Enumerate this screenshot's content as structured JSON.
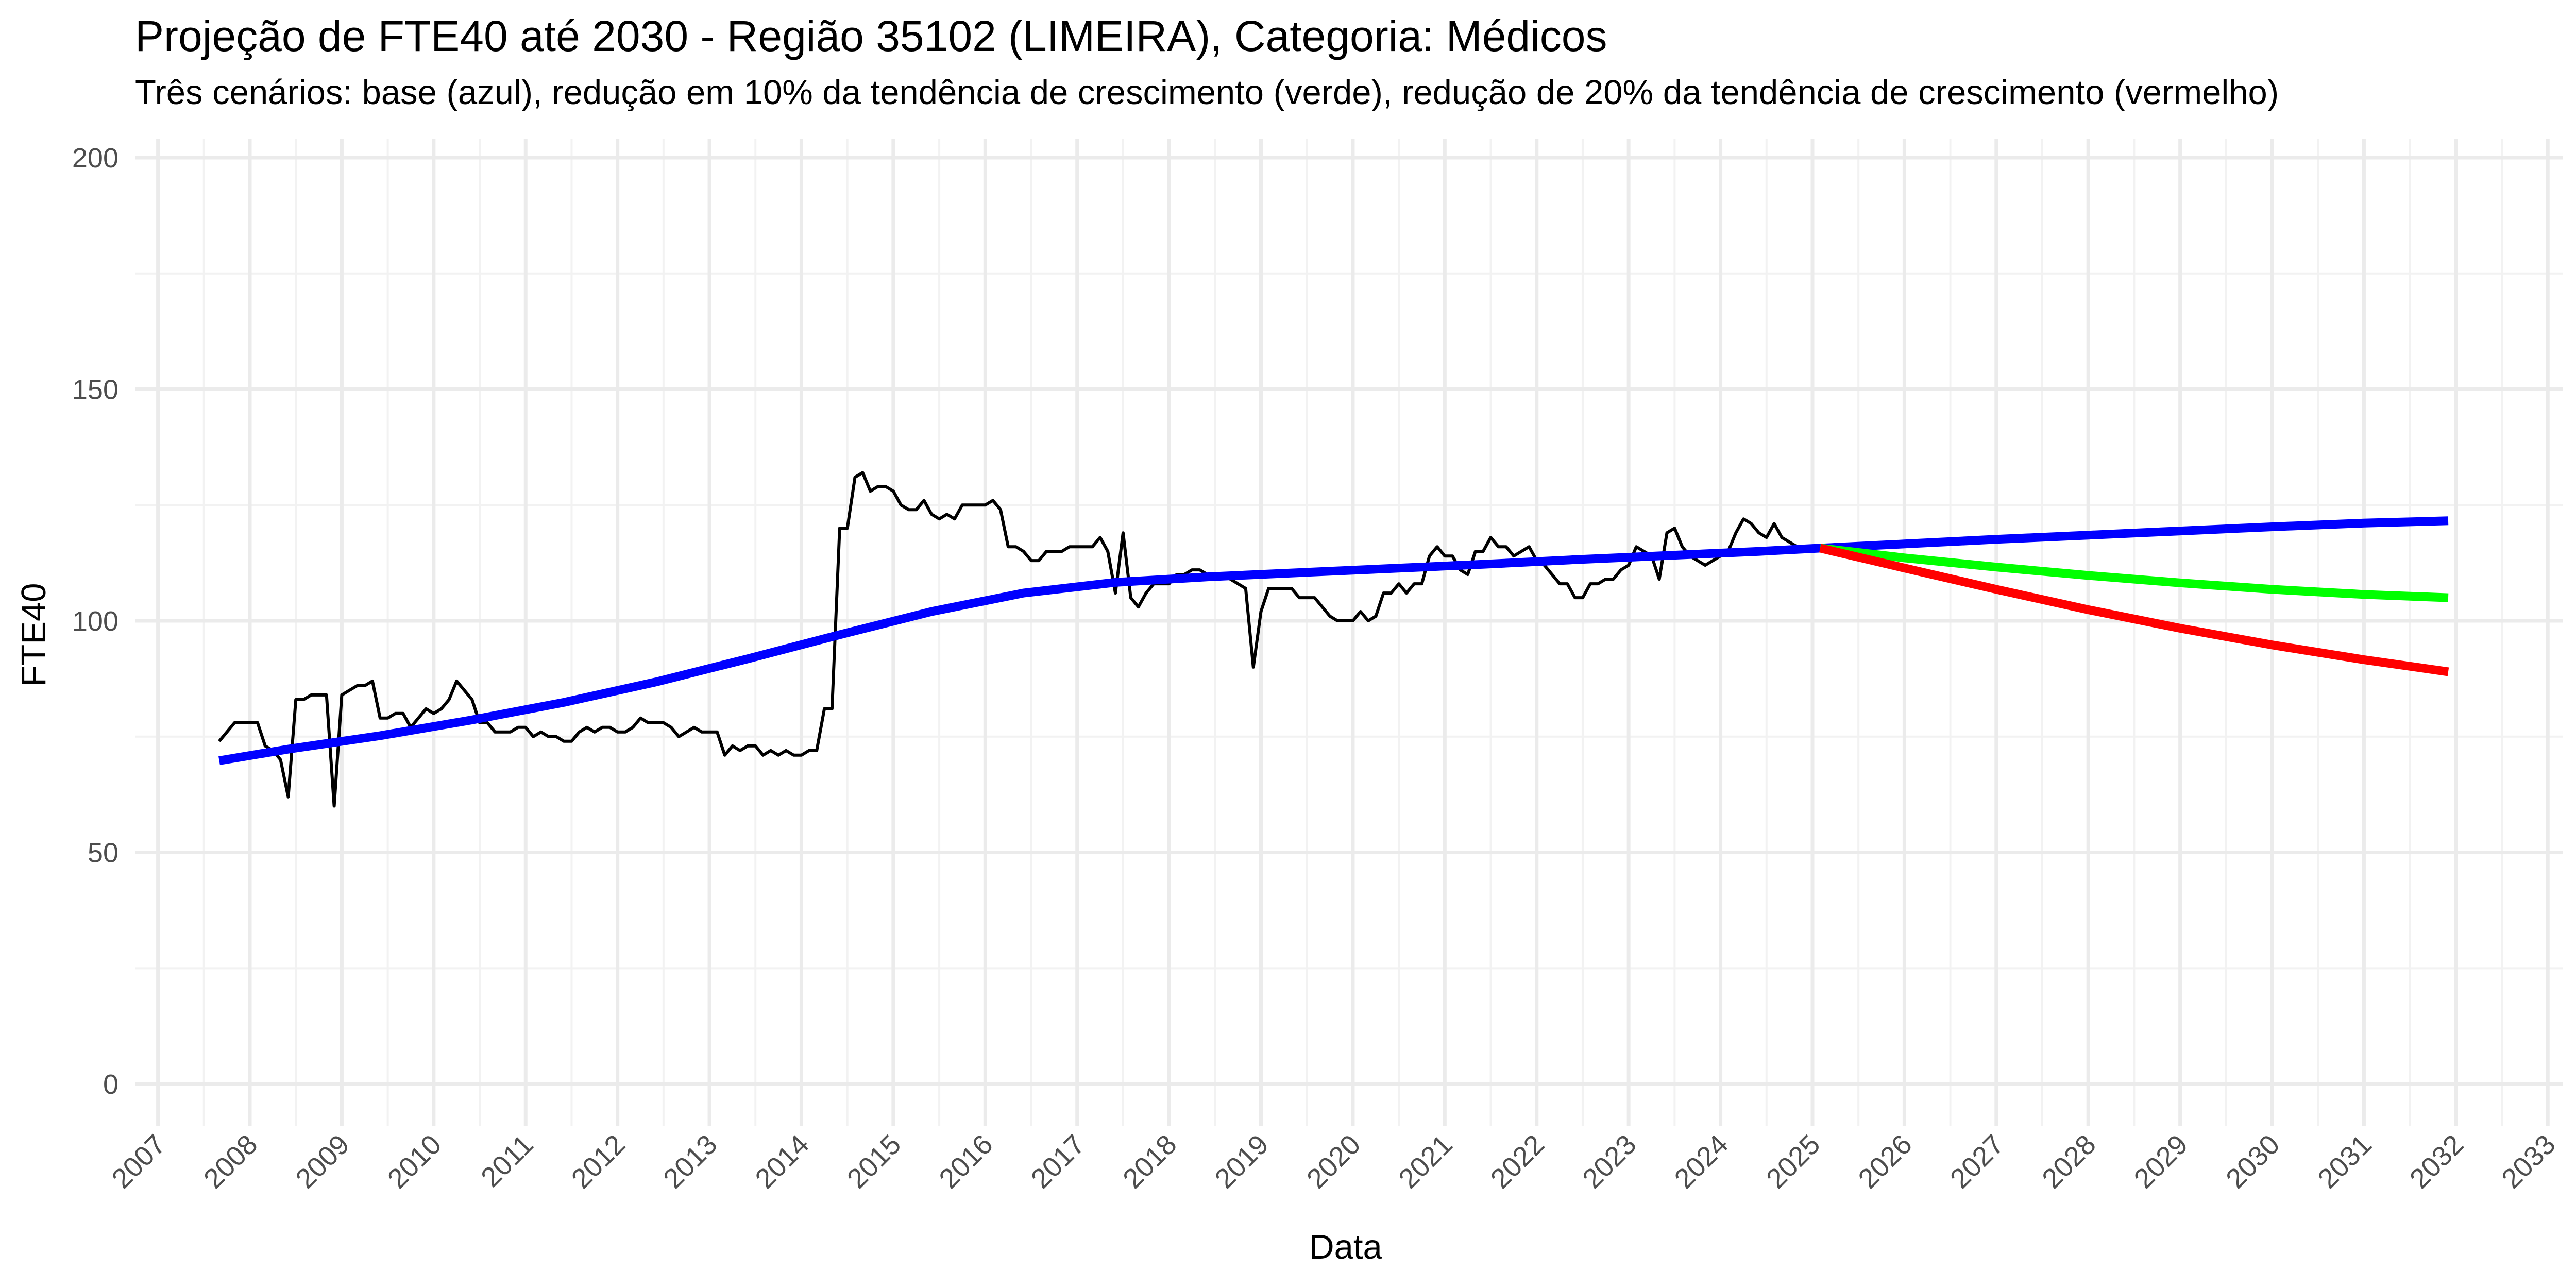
{
  "chart_data": {
    "type": "line",
    "title": "Projeção de FTE40 até 2030 - Região 35102 (LIMEIRA), Categoria: Médicos",
    "subtitle": "Três cenários: base (azul), redução em 10% da tendência de crescimento (verde), redução de 20% da tendência de crescimento (vermelho)",
    "xlabel": "Data",
    "ylabel": "FTE40",
    "x_ticks": [
      "2007",
      "2008",
      "2009",
      "2010",
      "2011",
      "2012",
      "2013",
      "2014",
      "2015",
      "2016",
      "2017",
      "2018",
      "2019",
      "2020",
      "2021",
      "2022",
      "2023",
      "2024",
      "2025",
      "2026",
      "2027",
      "2028",
      "2029",
      "2030",
      "2031",
      "2032",
      "2033"
    ],
    "y_ticks": [
      0,
      50,
      100,
      150,
      200
    ],
    "xlim": [
      "2006-10-01",
      "2033-03-01"
    ],
    "ylim": [
      -9,
      204
    ],
    "grid": true,
    "series": [
      {
        "color": "#000000",
        "points": [
          [
            "2007-09-01",
            74
          ],
          [
            "2007-10-01",
            76
          ],
          [
            "2007-11-01",
            78
          ],
          [
            "2007-12-01",
            78
          ],
          [
            "2008-01-01",
            78
          ],
          [
            "2008-02-01",
            78
          ],
          [
            "2008-03-01",
            73
          ],
          [
            "2008-04-01",
            72
          ],
          [
            "2008-05-01",
            70
          ],
          [
            "2008-06-01",
            62
          ],
          [
            "2008-07-01",
            83
          ],
          [
            "2008-08-01",
            83
          ],
          [
            "2008-09-01",
            84
          ],
          [
            "2008-10-01",
            84
          ],
          [
            "2008-11-01",
            84
          ],
          [
            "2008-12-01",
            60
          ],
          [
            "2009-01-01",
            84
          ],
          [
            "2009-02-01",
            85
          ],
          [
            "2009-03-01",
            86
          ],
          [
            "2009-04-01",
            86
          ],
          [
            "2009-05-01",
            87
          ],
          [
            "2009-06-01",
            79
          ],
          [
            "2009-07-01",
            79
          ],
          [
            "2009-08-01",
            80
          ],
          [
            "2009-09-01",
            80
          ],
          [
            "2009-10-01",
            77
          ],
          [
            "2009-11-01",
            79
          ],
          [
            "2009-12-01",
            81
          ],
          [
            "2010-01-01",
            80
          ],
          [
            "2010-02-01",
            81
          ],
          [
            "2010-03-01",
            83
          ],
          [
            "2010-04-01",
            87
          ],
          [
            "2010-05-01",
            85
          ],
          [
            "2010-06-01",
            83
          ],
          [
            "2010-07-01",
            78
          ],
          [
            "2010-08-01",
            78
          ],
          [
            "2010-09-01",
            76
          ],
          [
            "2010-10-01",
            76
          ],
          [
            "2010-11-01",
            76
          ],
          [
            "2010-12-01",
            77
          ],
          [
            "2011-01-01",
            77
          ],
          [
            "2011-02-01",
            75
          ],
          [
            "2011-03-01",
            76
          ],
          [
            "2011-04-01",
            75
          ],
          [
            "2011-05-01",
            75
          ],
          [
            "2011-06-01",
            74
          ],
          [
            "2011-07-01",
            74
          ],
          [
            "2011-08-01",
            76
          ],
          [
            "2011-09-01",
            77
          ],
          [
            "2011-10-01",
            76
          ],
          [
            "2011-11-01",
            77
          ],
          [
            "2011-12-01",
            77
          ],
          [
            "2012-01-01",
            76
          ],
          [
            "2012-02-01",
            76
          ],
          [
            "2012-03-01",
            77
          ],
          [
            "2012-04-01",
            79
          ],
          [
            "2012-05-01",
            78
          ],
          [
            "2012-06-01",
            78
          ],
          [
            "2012-07-01",
            78
          ],
          [
            "2012-08-01",
            77
          ],
          [
            "2012-09-01",
            75
          ],
          [
            "2012-10-01",
            76
          ],
          [
            "2012-11-01",
            77
          ],
          [
            "2012-12-01",
            76
          ],
          [
            "2013-01-01",
            76
          ],
          [
            "2013-02-01",
            76
          ],
          [
            "2013-03-01",
            71
          ],
          [
            "2013-04-01",
            73
          ],
          [
            "2013-05-01",
            72
          ],
          [
            "2013-06-01",
            73
          ],
          [
            "2013-07-01",
            73
          ],
          [
            "2013-08-01",
            71
          ],
          [
            "2013-09-01",
            72
          ],
          [
            "2013-10-01",
            71
          ],
          [
            "2013-11-01",
            72
          ],
          [
            "2013-12-01",
            71
          ],
          [
            "2014-01-01",
            71
          ],
          [
            "2014-02-01",
            72
          ],
          [
            "2014-03-01",
            72
          ],
          [
            "2014-04-01",
            81
          ],
          [
            "2014-05-01",
            81
          ],
          [
            "2014-06-01",
            120
          ],
          [
            "2014-07-01",
            120
          ],
          [
            "2014-08-01",
            131
          ],
          [
            "2014-09-01",
            132
          ],
          [
            "2014-10-01",
            128
          ],
          [
            "2014-11-01",
            129
          ],
          [
            "2014-12-01",
            129
          ],
          [
            "2015-01-01",
            128
          ],
          [
            "2015-02-01",
            125
          ],
          [
            "2015-03-01",
            124
          ],
          [
            "2015-04-01",
            124
          ],
          [
            "2015-05-01",
            126
          ],
          [
            "2015-06-01",
            123
          ],
          [
            "2015-07-01",
            122
          ],
          [
            "2015-08-01",
            123
          ],
          [
            "2015-09-01",
            122
          ],
          [
            "2015-10-01",
            125
          ],
          [
            "2015-11-01",
            125
          ],
          [
            "2015-12-01",
            125
          ],
          [
            "2016-01-01",
            125
          ],
          [
            "2016-02-01",
            126
          ],
          [
            "2016-03-01",
            124
          ],
          [
            "2016-04-01",
            116
          ],
          [
            "2016-05-01",
            116
          ],
          [
            "2016-06-01",
            115
          ],
          [
            "2016-07-01",
            113
          ],
          [
            "2016-08-01",
            113
          ],
          [
            "2016-09-01",
            115
          ],
          [
            "2016-10-01",
            115
          ],
          [
            "2016-11-01",
            115
          ],
          [
            "2016-12-01",
            116
          ],
          [
            "2017-01-01",
            116
          ],
          [
            "2017-02-01",
            116
          ],
          [
            "2017-03-01",
            116
          ],
          [
            "2017-04-01",
            118
          ],
          [
            "2017-05-01",
            115
          ],
          [
            "2017-06-01",
            106
          ],
          [
            "2017-07-01",
            119
          ],
          [
            "2017-08-01",
            105
          ],
          [
            "2017-09-01",
            103
          ],
          [
            "2017-10-01",
            106
          ],
          [
            "2017-11-01",
            108
          ],
          [
            "2017-12-01",
            108
          ],
          [
            "2018-01-01",
            108
          ],
          [
            "2018-02-01",
            110
          ],
          [
            "2018-03-01",
            110
          ],
          [
            "2018-04-01",
            111
          ],
          [
            "2018-05-01",
            111
          ],
          [
            "2018-06-01",
            110
          ],
          [
            "2018-07-01",
            110
          ],
          [
            "2018-08-01",
            110
          ],
          [
            "2018-09-01",
            109
          ],
          [
            "2018-10-01",
            108
          ],
          [
            "2018-11-01",
            107
          ],
          [
            "2018-12-01",
            90
          ],
          [
            "2019-01-01",
            102
          ],
          [
            "2019-02-01",
            107
          ],
          [
            "2019-03-01",
            107
          ],
          [
            "2019-04-01",
            107
          ],
          [
            "2019-05-01",
            107
          ],
          [
            "2019-06-01",
            105
          ],
          [
            "2019-07-01",
            105
          ],
          [
            "2019-08-01",
            105
          ],
          [
            "2019-09-01",
            103
          ],
          [
            "2019-10-01",
            101
          ],
          [
            "2019-11-01",
            100
          ],
          [
            "2019-12-01",
            100
          ],
          [
            "2020-01-01",
            100
          ],
          [
            "2020-02-01",
            102
          ],
          [
            "2020-03-01",
            100
          ],
          [
            "2020-04-01",
            101
          ],
          [
            "2020-05-01",
            106
          ],
          [
            "2020-06-01",
            106
          ],
          [
            "2020-07-01",
            108
          ],
          [
            "2020-08-01",
            106
          ],
          [
            "2020-09-01",
            108
          ],
          [
            "2020-10-01",
            108
          ],
          [
            "2020-11-01",
            114
          ],
          [
            "2020-12-01",
            116
          ],
          [
            "2021-01-01",
            114
          ],
          [
            "2021-02-01",
            114
          ],
          [
            "2021-03-01",
            111
          ],
          [
            "2021-04-01",
            110
          ],
          [
            "2021-05-01",
            115
          ],
          [
            "2021-06-01",
            115
          ],
          [
            "2021-07-01",
            118
          ],
          [
            "2021-08-01",
            116
          ],
          [
            "2021-09-01",
            116
          ],
          [
            "2021-10-01",
            114
          ],
          [
            "2021-11-01",
            115
          ],
          [
            "2021-12-01",
            116
          ],
          [
            "2022-01-01",
            113
          ],
          [
            "2022-02-01",
            112
          ],
          [
            "2022-03-01",
            110
          ],
          [
            "2022-04-01",
            108
          ],
          [
            "2022-05-01",
            108
          ],
          [
            "2022-06-01",
            105
          ],
          [
            "2022-07-01",
            105
          ],
          [
            "2022-08-01",
            108
          ],
          [
            "2022-09-01",
            108
          ],
          [
            "2022-10-01",
            109
          ],
          [
            "2022-11-01",
            109
          ],
          [
            "2022-12-01",
            111
          ],
          [
            "2023-01-01",
            112
          ],
          [
            "2023-02-01",
            116
          ],
          [
            "2023-03-01",
            115
          ],
          [
            "2023-04-01",
            114
          ],
          [
            "2023-05-01",
            109
          ],
          [
            "2023-06-01",
            119
          ],
          [
            "2023-07-01",
            120
          ],
          [
            "2023-08-01",
            116
          ],
          [
            "2023-09-01",
            114
          ],
          [
            "2023-10-01",
            113
          ],
          [
            "2023-11-01",
            112
          ],
          [
            "2023-12-01",
            113
          ],
          [
            "2024-01-01",
            114
          ],
          [
            "2024-02-01",
            115
          ],
          [
            "2024-03-01",
            119
          ],
          [
            "2024-04-01",
            122
          ],
          [
            "2024-05-01",
            121
          ],
          [
            "2024-06-01",
            119
          ],
          [
            "2024-07-01",
            118
          ],
          [
            "2024-08-01",
            121
          ],
          [
            "2024-09-01",
            118
          ],
          [
            "2024-10-01",
            117
          ],
          [
            "2024-11-01",
            116
          ],
          [
            "2024-12-01",
            116
          ],
          [
            "2025-01-01",
            115
          ],
          [
            "2025-02-01",
            116
          ]
        ]
      },
      {
        "color": "#0000ff",
        "points": [
          [
            "2007-09-01",
            69.8
          ],
          [
            "2008-06-01",
            72.3
          ],
          [
            "2009-06-01",
            75.2
          ],
          [
            "2010-06-01",
            78.6
          ],
          [
            "2011-06-01",
            82.4
          ],
          [
            "2012-06-01",
            86.8
          ],
          [
            "2013-06-01",
            91.8
          ],
          [
            "2014-06-01",
            97.0
          ],
          [
            "2015-06-01",
            102.0
          ],
          [
            "2016-06-01",
            106.0
          ],
          [
            "2017-06-01",
            108.3
          ],
          [
            "2018-06-01",
            109.5
          ],
          [
            "2019-06-01",
            110.4
          ],
          [
            "2020-06-01",
            111.3
          ],
          [
            "2021-06-01",
            112.2
          ],
          [
            "2022-06-01",
            113.2
          ],
          [
            "2023-06-01",
            114.1
          ],
          [
            "2024-06-01",
            115.0
          ],
          [
            "2025-02-01",
            115.7
          ],
          [
            "2026-01-01",
            116.6
          ],
          [
            "2027-01-01",
            117.6
          ],
          [
            "2028-01-01",
            118.5
          ],
          [
            "2029-01-01",
            119.4
          ],
          [
            "2030-01-01",
            120.3
          ],
          [
            "2031-01-01",
            121.1
          ],
          [
            "2031-12-01",
            121.6
          ]
        ]
      },
      {
        "color": "#00ff00",
        "points": [
          [
            "2025-02-01",
            115.7
          ],
          [
            "2026-01-01",
            113.6
          ],
          [
            "2027-01-01",
            111.6
          ],
          [
            "2028-01-01",
            109.8
          ],
          [
            "2029-01-01",
            108.2
          ],
          [
            "2030-01-01",
            106.8
          ],
          [
            "2031-01-01",
            105.7
          ],
          [
            "2031-12-01",
            105.0
          ]
        ]
      },
      {
        "color": "#ff0000",
        "points": [
          [
            "2025-02-01",
            115.7
          ],
          [
            "2026-01-01",
            111.4
          ],
          [
            "2027-01-01",
            106.8
          ],
          [
            "2028-01-01",
            102.4
          ],
          [
            "2029-01-01",
            98.4
          ],
          [
            "2030-01-01",
            94.8
          ],
          [
            "2031-01-01",
            91.6
          ],
          [
            "2031-12-01",
            89.0
          ]
        ]
      }
    ]
  }
}
